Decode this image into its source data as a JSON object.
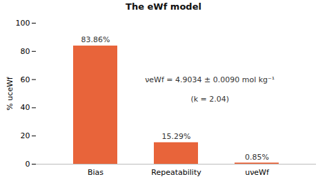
{
  "chart_data": {
    "type": "bar",
    "title": "The eWf model",
    "categories": [
      "Bias",
      "Repeatability",
      "uνeWf"
    ],
    "values": [
      83.86,
      15.29,
      0.85
    ],
    "value_labels": [
      "83.86%",
      "15.29%",
      "0.85%"
    ],
    "data_labels": true,
    "color": "#E8643A",
    "y_label": "% uceWf",
    "annotations": [
      "νeWf = 4.9034 ± 0.0090 mol kg⁻¹",
      "(k = 2.04)"
    ],
    "ylim": [
      0,
      100
    ],
    "yticks": [
      0,
      20,
      40,
      60,
      80,
      100
    ],
    "grid": false
  }
}
